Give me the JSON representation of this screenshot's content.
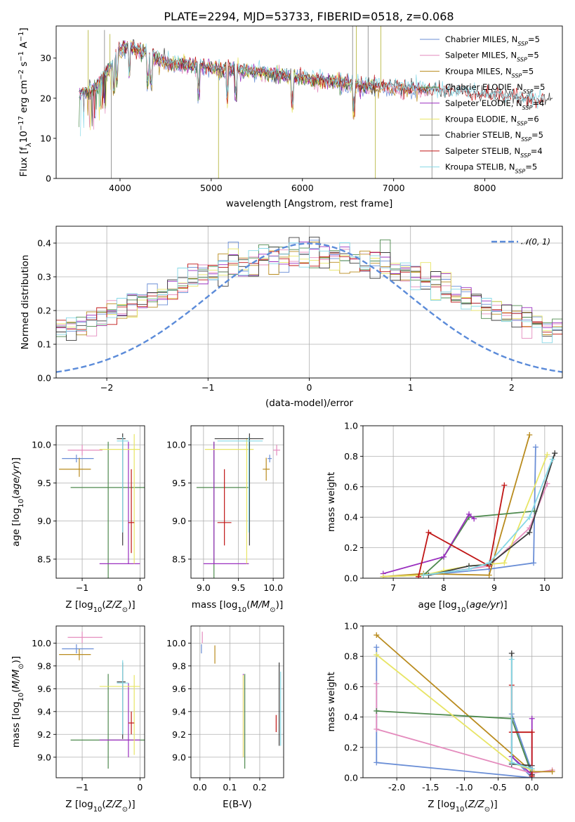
{
  "figure": {
    "title": "PLATE=2294, MJD=53733, FIBERID=0518, z=0.068"
  },
  "colors": {
    "chabrier_miles": "#6a8ed6",
    "salpeter_miles": "#e48bbd",
    "kroupa_miles": "#b98b1e",
    "chabrier_elodie": "#4e8a4e",
    "salpeter_elodie": "#9a2fbf",
    "kroupa_elodie": "#e8e566",
    "chabrier_stelib": "#3c3c3c",
    "salpeter_stelib": "#c01616",
    "kroupa_stelib": "#86d8e6"
  },
  "chart_data": [
    {
      "id": "spectrum",
      "type": "line",
      "xlabel": "wavelength [Angstrom, rest frame]",
      "ylabel": "Flux [f_λ 10^{-17} erg cm^{-2} s^{-1} A^{-1}]",
      "xlim": [
        3300,
        8850
      ],
      "ylim": [
        0,
        38
      ],
      "xticks": [
        4000,
        5000,
        6000,
        7000,
        8000
      ],
      "yticks": [
        0,
        10,
        20,
        30
      ],
      "grid": false,
      "legend_position": "top-right",
      "continuum": {
        "x": [
          3550,
          3700,
          3800,
          3900,
          3950,
          4000,
          4100,
          4200,
          4300,
          4400,
          4500,
          4700,
          4900,
          5100,
          5300,
          5500,
          5700,
          6000,
          6300,
          6500,
          6700,
          7000,
          7300,
          7600,
          8000,
          8300,
          8800
        ],
        "y": [
          21,
          22,
          25,
          28,
          30,
          32,
          33,
          32,
          31,
          30,
          29,
          28,
          28,
          27,
          27,
          26.5,
          26,
          25,
          24,
          23.5,
          23,
          22.5,
          22,
          21.5,
          20.5,
          20,
          19
        ]
      },
      "spikes": [
        {
          "x": 3650,
          "y": 37
        },
        {
          "x": 3830,
          "y": 37
        },
        {
          "x": 3890,
          "y": 36
        },
        {
          "x": 6550,
          "y": 38
        },
        {
          "x": 6590,
          "y": 38
        },
        {
          "x": 6720,
          "y": 38
        },
        {
          "x": 5080,
          "y": 0
        },
        {
          "x": 3905,
          "y": 0
        },
        {
          "x": 6800,
          "y": 0
        },
        {
          "x": 7420,
          "y": 0
        },
        {
          "x": 6860,
          "y": 38
        }
      ],
      "legend": [
        {
          "label": "Chabrier MILES, N",
          "sub": "SSP",
          "suffix": "=5",
          "color_key": "chabrier_miles"
        },
        {
          "label": "Salpeter MILES, N",
          "sub": "SSP",
          "suffix": "=5",
          "color_key": "salpeter_miles"
        },
        {
          "label": "Kroupa MILES, N",
          "sub": "SSP",
          "suffix": "=5",
          "color_key": "kroupa_miles"
        },
        {
          "label": "Chabrier ELODIE, N",
          "sub": "SSP",
          "suffix": "=5",
          "color_key": "chabrier_elodie"
        },
        {
          "label": "Salpeter ELODIE, N",
          "sub": "SSP",
          "suffix": "=4",
          "color_key": "salpeter_elodie"
        },
        {
          "label": "Kroupa ELODIE, N",
          "sub": "SSP",
          "suffix": "=6",
          "color_key": "kroupa_elodie"
        },
        {
          "label": "Chabrier STELIB, N",
          "sub": "SSP",
          "suffix": "=5",
          "color_key": "chabrier_stelib"
        },
        {
          "label": "Salpeter STELIB, N",
          "sub": "SSP",
          "suffix": "=4",
          "color_key": "salpeter_stelib"
        },
        {
          "label": "Kroupa STELIB, N",
          "sub": "SSP",
          "suffix": "=5",
          "color_key": "kroupa_stelib"
        }
      ]
    },
    {
      "id": "residuals",
      "type": "line",
      "xlabel": "(data-model)/error",
      "ylabel": "Normed distribution",
      "xlim": [
        -2.5,
        2.5
      ],
      "ylim": [
        0,
        0.45
      ],
      "xticks": [
        -2,
        -1,
        0,
        1,
        2
      ],
      "yticks": [
        0.0,
        0.1,
        0.2,
        0.3,
        0.4
      ],
      "grid": true,
      "legend_position": "top-right",
      "gaussian_label": "𝒩(0, 1)",
      "gaussian_color": "#5b8bd9",
      "bin_width": 0.1
    },
    {
      "id": "age_vs_Z",
      "type": "scatter",
      "xlabel": "Z [log10(Z/Z⊙)]",
      "ylabel": "age [log10(age/yr)]",
      "xlim": [
        -1.45,
        0.08
      ],
      "ylim": [
        8.25,
        10.25
      ],
      "xticks": [
        -1,
        0
      ],
      "yticks": [
        8.5,
        9.0,
        9.5,
        10.0
      ],
      "grid": true,
      "points": [
        {
          "c": "chabrier_miles",
          "x": -1.1,
          "y": 9.82,
          "xe": [
            0.25,
            0.3
          ],
          "ye": [
            0.05,
            0.05
          ]
        },
        {
          "c": "salpeter_miles",
          "x": -1.0,
          "y": 9.93,
          "xe": [
            0.25,
            0.35
          ],
          "ye": [
            0.07,
            0.07
          ]
        },
        {
          "c": "kroupa_miles",
          "x": -1.05,
          "y": 9.68,
          "xe": [
            0.35,
            0.2
          ],
          "ye": [
            0.1,
            0.15
          ]
        },
        {
          "c": "chabrier_elodie",
          "x": -0.55,
          "y": 9.44,
          "xe": [
            0.65,
            0.65
          ],
          "ye": [
            1.2,
            0.6
          ]
        },
        {
          "c": "salpeter_elodie",
          "x": -0.2,
          "y": 8.44,
          "xe": [
            0.5,
            0.2
          ],
          "ye": [
            0.0,
            1.6
          ]
        },
        {
          "c": "kroupa_elodie",
          "x": -0.1,
          "y": 9.94,
          "xe": [
            0.6,
            0.1
          ],
          "ye": [
            1.5,
            0.2
          ]
        },
        {
          "c": "chabrier_stelib",
          "x": -0.3,
          "y": 10.08,
          "xe": [
            0.1,
            0.05
          ],
          "ye": [
            1.4,
            0.07
          ]
        },
        {
          "c": "salpeter_stelib",
          "x": -0.15,
          "y": 8.98,
          "xe": [
            0.05,
            0.05
          ],
          "ye": [
            0.4,
            0.7
          ]
        },
        {
          "c": "kroupa_stelib",
          "x": -0.3,
          "y": 10.05,
          "xe": [
            0.1,
            0.1
          ],
          "ye": [
            1.2,
            0.05
          ]
        }
      ]
    },
    {
      "id": "age_vs_mass",
      "type": "scatter",
      "xlabel": "mass [log10(M/M⊙)]",
      "ylabel": "",
      "xlim": [
        8.82,
        10.15
      ],
      "ylim": [
        8.25,
        10.25
      ],
      "xticks": [
        9.0,
        9.5,
        10.0
      ],
      "yticks": [
        8.5,
        9.0,
        9.5,
        10.0
      ],
      "grid": true,
      "points": [
        {
          "c": "chabrier_miles",
          "x": 9.95,
          "y": 9.82,
          "xe": [
            0.03,
            0.03
          ],
          "ye": [
            0.05,
            0.05
          ]
        },
        {
          "c": "salpeter_miles",
          "x": 10.05,
          "y": 9.93,
          "xe": [
            0.05,
            0.05
          ],
          "ye": [
            0.07,
            0.07
          ]
        },
        {
          "c": "kroupa_miles",
          "x": 9.9,
          "y": 9.68,
          "xe": [
            0.05,
            0.05
          ],
          "ye": [
            0.15,
            0.15
          ]
        },
        {
          "c": "chabrier_elodie",
          "x": 9.15,
          "y": 9.44,
          "xe": [
            0.25,
            0.5
          ],
          "ye": [
            1.2,
            0.6
          ]
        },
        {
          "c": "salpeter_elodie",
          "x": 9.15,
          "y": 8.44,
          "xe": [
            0.15,
            0.5
          ],
          "ye": [
            0.0,
            1.6
          ]
        },
        {
          "c": "kroupa_elodie",
          "x": 9.62,
          "y": 9.94,
          "xe": [
            0.6,
            0.1
          ],
          "ye": [
            1.5,
            0.15
          ]
        },
        {
          "c": "chabrier_stelib",
          "x": 9.66,
          "y": 10.08,
          "xe": [
            0.5,
            0.2
          ],
          "ye": [
            1.4,
            0.07
          ]
        },
        {
          "c": "salpeter_stelib",
          "x": 9.3,
          "y": 8.98,
          "xe": [
            0.1,
            0.1
          ],
          "ye": [
            0.3,
            0.7
          ]
        },
        {
          "c": "kroupa_stelib",
          "x": 9.65,
          "y": 10.05,
          "xe": [
            0.45,
            0.2
          ],
          "ye": [
            1.2,
            0.05
          ]
        }
      ]
    },
    {
      "id": "weight_vs_age",
      "type": "line",
      "xlabel": "age [log10(age/yr)]",
      "ylabel": "mass weight",
      "xlim": [
        6.4,
        10.35
      ],
      "ylim": [
        0,
        1.0
      ],
      "xticks": [
        7,
        8,
        9,
        10
      ],
      "yticks": [
        0.0,
        0.2,
        0.4,
        0.6,
        0.8,
        1.0
      ],
      "grid": true,
      "series": [
        {
          "c": "chabrier_miles",
          "x": [
            6.8,
            7.6,
            8.9,
            9.78,
            9.82
          ],
          "y": [
            0.01,
            0.02,
            0.06,
            0.1,
            0.86
          ]
        },
        {
          "c": "salpeter_miles",
          "x": [
            6.8,
            7.6,
            8.9,
            9.7,
            10.05
          ],
          "y": [
            0.01,
            0.02,
            0.08,
            0.33,
            0.62
          ]
        },
        {
          "c": "kroupa_miles",
          "x": [
            6.8,
            7.6,
            8.9,
            9.7
          ],
          "y": [
            0.01,
            0.03,
            0.02,
            0.94
          ]
        },
        {
          "c": "chabrier_elodie",
          "x": [
            7.6,
            8.0,
            8.5,
            9.8
          ],
          "y": [
            0.02,
            0.14,
            0.4,
            0.44
          ]
        },
        {
          "c": "salpeter_elodie",
          "x": [
            6.8,
            8.0,
            8.5,
            8.6
          ],
          "y": [
            0.03,
            0.14,
            0.42,
            0.39
          ]
        },
        {
          "c": "kroupa_elodie",
          "x": [
            6.8,
            7.6,
            8.0,
            8.5,
            9.2,
            10.05
          ],
          "y": [
            0.01,
            0.02,
            0.05,
            0.08,
            0.1,
            0.81
          ]
        },
        {
          "c": "chabrier_stelib",
          "x": [
            7.7,
            8.5,
            8.9,
            9.7,
            10.2
          ],
          "y": [
            0.02,
            0.08,
            0.09,
            0.3,
            0.82
          ]
        },
        {
          "c": "salpeter_stelib",
          "x": [
            7.5,
            7.7,
            8.9,
            9.2
          ],
          "y": [
            0.01,
            0.3,
            0.08,
            0.61
          ]
        },
        {
          "c": "kroupa_stelib",
          "x": [
            7.6,
            8.5,
            8.9,
            9.7,
            10.15
          ],
          "y": [
            0.02,
            0.06,
            0.1,
            0.4,
            0.78
          ]
        }
      ]
    },
    {
      "id": "mass_vs_Z",
      "type": "scatter",
      "xlabel": "Z [log10(Z/Z⊙)]",
      "ylabel": "mass [log10(M/M⊙)]",
      "xlim": [
        -1.45,
        0.08
      ],
      "ylim": [
        8.82,
        10.15
      ],
      "xticks": [
        -1,
        0
      ],
      "yticks": [
        9.0,
        9.2,
        9.4,
        9.6,
        9.8,
        10.0
      ],
      "grid": true,
      "points": [
        {
          "c": "chabrier_miles",
          "x": -1.1,
          "y": 9.95,
          "xe": [
            0.25,
            0.3
          ],
          "ye": [
            0.04,
            0.04
          ]
        },
        {
          "c": "salpeter_miles",
          "x": -1.0,
          "y": 10.05,
          "xe": [
            0.25,
            0.35
          ],
          "ye": [
            0.05,
            0.05
          ]
        },
        {
          "c": "kroupa_miles",
          "x": -1.05,
          "y": 9.9,
          "xe": [
            0.35,
            0.2
          ],
          "ye": [
            0.05,
            0.05
          ]
        },
        {
          "c": "chabrier_elodie",
          "x": -0.55,
          "y": 9.15,
          "xe": [
            0.65,
            0.65
          ],
          "ye": [
            0.25,
            0.58
          ]
        },
        {
          "c": "salpeter_elodie",
          "x": -0.2,
          "y": 9.15,
          "xe": [
            0.5,
            0.2
          ],
          "ye": [
            0.15,
            0.5
          ]
        },
        {
          "c": "kroupa_elodie",
          "x": -0.1,
          "y": 9.62,
          "xe": [
            0.6,
            0.1
          ],
          "ye": [
            0.6,
            0.1
          ]
        },
        {
          "c": "chabrier_stelib",
          "x": -0.3,
          "y": 9.66,
          "xe": [
            0.1,
            0.05
          ],
          "ye": [
            0.5,
            0.17
          ]
        },
        {
          "c": "salpeter_stelib",
          "x": -0.15,
          "y": 9.3,
          "xe": [
            0.05,
            0.05
          ],
          "ye": [
            0.1,
            0.1
          ]
        },
        {
          "c": "kroupa_stelib",
          "x": -0.3,
          "y": 9.65,
          "xe": [
            0.1,
            0.1
          ],
          "ye": [
            0.45,
            0.2
          ]
        }
      ]
    },
    {
      "id": "mass_vs_ebv",
      "type": "scatter",
      "xlabel": "E(B-V)",
      "ylabel": "",
      "xlim": [
        -0.03,
        0.28
      ],
      "ylim": [
        8.82,
        10.15
      ],
      "xticks": [
        0.0,
        0.1,
        0.2
      ],
      "yticks": [
        9.0,
        9.2,
        9.4,
        9.6,
        9.8,
        10.0
      ],
      "grid": true,
      "points": [
        {
          "c": "chabrier_miles",
          "x": 0.005,
          "y": 9.95,
          "xe": [
            0.0,
            0.0
          ],
          "ye": [
            0.04,
            0.04
          ]
        },
        {
          "c": "salpeter_miles",
          "x": 0.008,
          "y": 10.05,
          "xe": [
            0.0,
            0.0
          ],
          "ye": [
            0.05,
            0.05
          ]
        },
        {
          "c": "kroupa_miles",
          "x": 0.05,
          "y": 9.9,
          "xe": [
            0.0,
            0.0
          ],
          "ye": [
            0.08,
            0.08
          ]
        },
        {
          "c": "chabrier_elodie",
          "x": 0.15,
          "y": 9.15,
          "xe": [
            0.0,
            0.0
          ],
          "ye": [
            0.25,
            0.58
          ]
        },
        {
          "c": "salpeter_elodie",
          "x": 0.145,
          "y": 9.15,
          "xe": [
            0.0,
            0.0
          ],
          "ye": [
            0.15,
            0.58
          ]
        },
        {
          "c": "kroupa_elodie",
          "x": 0.145,
          "y": 9.4,
          "xe": [
            0.0,
            0.0
          ],
          "ye": [
            0.4,
            0.32
          ]
        },
        {
          "c": "chabrier_stelib",
          "x": 0.265,
          "y": 9.5,
          "xe": [
            0.0,
            0.0
          ],
          "ye": [
            0.4,
            0.33
          ]
        },
        {
          "c": "salpeter_stelib",
          "x": 0.255,
          "y": 9.3,
          "xe": [
            0.0,
            0.0
          ],
          "ye": [
            0.08,
            0.07
          ]
        },
        {
          "c": "kroupa_stelib",
          "x": 0.27,
          "y": 9.45,
          "xe": [
            0.0,
            0.0
          ],
          "ye": [
            0.35,
            0.3
          ]
        }
      ]
    },
    {
      "id": "weight_vs_Z",
      "type": "line",
      "xlabel": "Z [log10(Z/Z⊙)]",
      "ylabel": "mass weight",
      "xlim": [
        -2.5,
        0.45
      ],
      "ylim": [
        0,
        1.0
      ],
      "xticks": [
        -2.0,
        -1.5,
        -1.0,
        -0.5,
        0.0
      ],
      "yticks": [
        0.0,
        0.2,
        0.4,
        0.6,
        0.8,
        1.0
      ],
      "grid": true,
      "series": [
        {
          "c": "chabrier_miles",
          "x": [
            -2.3,
            -2.3,
            0.0,
            -0.3,
            -0.3,
            0.0
          ],
          "y": [
            0.86,
            0.1,
            0.0,
            0.14,
            0.42,
            0.04
          ]
        },
        {
          "c": "salpeter_miles",
          "x": [
            -2.3,
            -2.3,
            0.0,
            0.3
          ],
          "y": [
            0.62,
            0.32,
            0.03,
            0.05
          ]
        },
        {
          "c": "kroupa_miles",
          "x": [
            -2.3,
            0.0,
            0.3
          ],
          "y": [
            0.94,
            0.04,
            0.04
          ]
        },
        {
          "c": "chabrier_elodie",
          "x": [
            -2.3,
            -0.3,
            0.0
          ],
          "y": [
            0.44,
            0.39,
            0.02
          ]
        },
        {
          "c": "salpeter_elodie",
          "x": [
            0.0,
            0.0,
            -0.3
          ],
          "y": [
            0.39,
            0.02,
            0.14
          ]
        },
        {
          "c": "kroupa_elodie",
          "x": [
            -2.3,
            -0.3,
            0.0,
            0.0
          ],
          "y": [
            0.81,
            0.1,
            0.05,
            0.01
          ]
        },
        {
          "c": "chabrier_stelib",
          "x": [
            -0.3,
            -0.3,
            0.0,
            0.0
          ],
          "y": [
            0.82,
            0.09,
            0.08,
            0.02
          ]
        },
        {
          "c": "salpeter_stelib",
          "x": [
            -0.3,
            -0.3,
            0.0,
            0.0
          ],
          "y": [
            0.61,
            0.3,
            0.3,
            0.01
          ]
        },
        {
          "c": "kroupa_stelib",
          "x": [
            -0.3,
            -0.3,
            0.0
          ],
          "y": [
            0.78,
            0.1,
            0.06
          ]
        }
      ]
    }
  ]
}
